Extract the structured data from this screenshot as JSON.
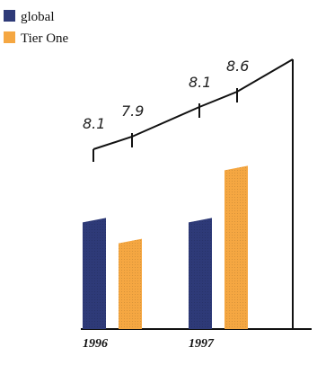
{
  "chart_data": {
    "type": "bar",
    "categories": [
      "1996",
      "1997"
    ],
    "series": [
      {
        "name": "global",
        "color": "#2e3a78",
        "values": [
          8.1,
          8.1
        ]
      },
      {
        "name": "Tier One",
        "color": "#f5a742",
        "values": [
          7.9,
          8.6
        ]
      }
    ],
    "legend": {
      "placement": "top-left",
      "items": [
        {
          "label": "global",
          "color": "#2e3a78"
        },
        {
          "label": "Tier One",
          "color": "#f5a742"
        }
      ]
    },
    "annotations": [
      {
        "label": "8.1"
      },
      {
        "label": "7.9"
      },
      {
        "label": "8.1"
      },
      {
        "label": "8.6"
      }
    ],
    "ylim": [
      6.5,
      9.0
    ],
    "grid": false,
    "title": "",
    "xlabel": "",
    "ylabel": ""
  }
}
